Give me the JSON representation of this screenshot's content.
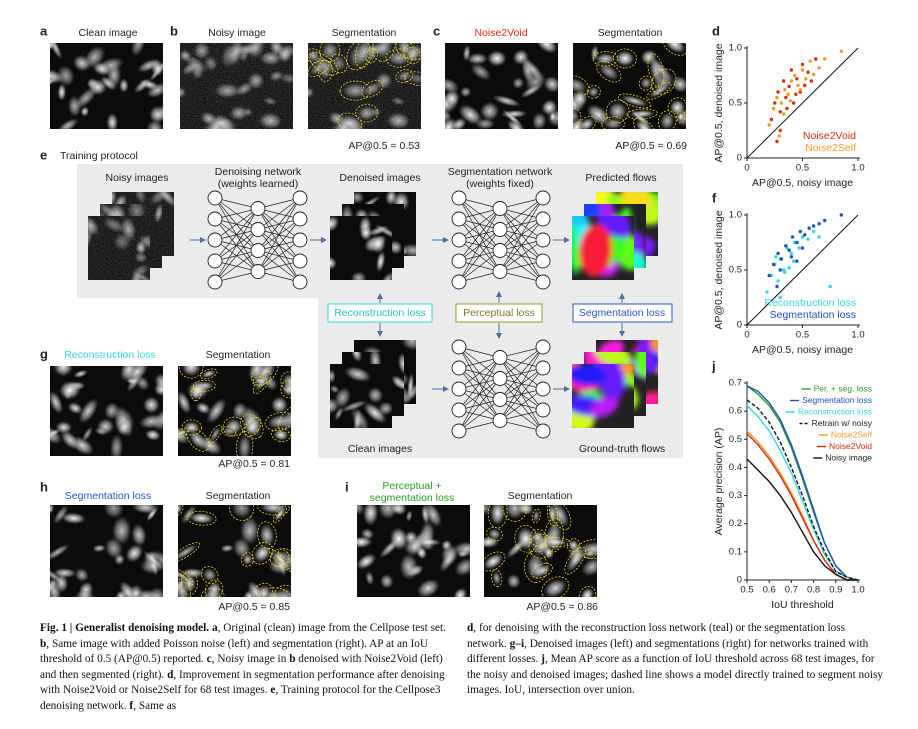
{
  "panels": {
    "a": {
      "label": "a",
      "title": "Clean image"
    },
    "b": {
      "label": "b",
      "titles": [
        "Noisy image",
        "Segmentation"
      ],
      "ap": "AP@0.5 = 0.53"
    },
    "c": {
      "label": "c",
      "titles": [
        "Noise2Void",
        "Segmentation"
      ],
      "ap": "AP@0.5 = 0.69"
    },
    "e": {
      "label": "e",
      "title": "Training protocol"
    },
    "g": {
      "label": "g",
      "titles": [
        "Reconstruction loss",
        "Segmentation"
      ],
      "ap": "AP@0.5 = 0.81"
    },
    "h": {
      "label": "h",
      "titles": [
        "Segmentation loss",
        "Segmentation"
      ],
      "ap": "AP@0.5 = 0.85"
    },
    "i": {
      "label": "i",
      "loss_lines": [
        "Perceptual +",
        "segmentation loss"
      ],
      "titles": [
        "Segmentation"
      ],
      "ap": "AP@0.5 = 0.86"
    }
  },
  "diagram": {
    "noisy_images": "Noisy images",
    "denoising_network": [
      "Denoising network",
      "(weights learned)"
    ],
    "denoised_images": "Denoised images",
    "segmentation_network": [
      "Segmentation network",
      "(weights fixed)"
    ],
    "predicted_flows": "Predicted flows",
    "reconstruction_loss": "Reconstruction loss",
    "perceptual_loss": "Perceptual loss",
    "segmentation_loss": "Segmentation loss",
    "clean_images": "Clean images",
    "ground_truth_flows": "Ground-truth flows"
  },
  "chart_data": [
    {
      "type": "scatter",
      "panel": "d",
      "xlabel": "AP@0.5, noisy image",
      "ylabel": "AP@0.5, denoised image",
      "xlim": [
        0,
        1
      ],
      "ylim": [
        0,
        1
      ],
      "xticks": [
        0,
        0.5,
        {
          "value": 1,
          "label": "1.0"
        }
      ],
      "yticks": [
        0,
        0.5,
        {
          "value": 1,
          "label": "1.0"
        }
      ],
      "legend_position": "lower right",
      "series": [
        {
          "name": "Noise2Void",
          "color": "#d62a0e",
          "x": [
            0.22,
            0.25,
            0.28,
            0.3,
            0.33,
            0.35,
            0.38,
            0.4,
            0.42,
            0.45,
            0.48,
            0.5,
            0.52,
            0.55,
            0.58,
            0.62,
            0.3,
            0.36,
            0.44,
            0.27
          ],
          "values": [
            0.35,
            0.5,
            0.6,
            0.42,
            0.7,
            0.55,
            0.65,
            0.8,
            0.5,
            0.72,
            0.6,
            0.85,
            0.66,
            0.78,
            0.7,
            0.9,
            0.25,
            0.45,
            0.58,
            0.15
          ]
        },
        {
          "name": "Noise2Self",
          "color": "#f39b2a",
          "x": [
            0.2,
            0.24,
            0.27,
            0.31,
            0.34,
            0.37,
            0.4,
            0.43,
            0.46,
            0.5,
            0.53,
            0.57,
            0.6,
            0.65,
            0.7,
            0.85,
            0.29,
            0.39,
            0.48,
            0.33
          ],
          "values": [
            0.3,
            0.45,
            0.55,
            0.5,
            0.62,
            0.58,
            0.7,
            0.75,
            0.66,
            0.8,
            0.72,
            0.88,
            0.76,
            0.82,
            0.9,
            0.97,
            0.2,
            0.52,
            0.62,
            0.4
          ]
        }
      ]
    },
    {
      "type": "scatter",
      "panel": "f",
      "xlabel": "AP@0.5, noisy image",
      "ylabel": "AP@0.5, denoised image",
      "xlim": [
        0,
        1
      ],
      "ylim": [
        0,
        1
      ],
      "xticks": [
        0,
        0.5,
        {
          "value": 1,
          "label": "1.0"
        }
      ],
      "yticks": [
        0,
        0.5,
        {
          "value": 1,
          "label": "1.0"
        }
      ],
      "legend_position": "lower right",
      "series": [
        {
          "name": "Reconstruction loss",
          "color": "#36d6e0",
          "x": [
            0.18,
            0.22,
            0.25,
            0.28,
            0.3,
            0.33,
            0.36,
            0.4,
            0.43,
            0.47,
            0.5,
            0.55,
            0.6,
            0.65,
            0.75,
            0.26,
            0.34,
            0.42,
            0.3,
            0.38
          ],
          "values": [
            0.3,
            0.45,
            0.55,
            0.4,
            0.6,
            0.5,
            0.7,
            0.65,
            0.75,
            0.7,
            0.8,
            0.78,
            0.85,
            0.8,
            0.35,
            0.62,
            0.48,
            0.58,
            0.25,
            0.52
          ]
        },
        {
          "name": "Segmentation loss",
          "color": "#1f4fc4",
          "x": [
            0.2,
            0.24,
            0.28,
            0.31,
            0.35,
            0.38,
            0.41,
            0.45,
            0.48,
            0.52,
            0.56,
            0.6,
            0.65,
            0.7,
            0.85,
            0.3,
            0.4,
            0.5,
            0.27,
            0.45
          ],
          "values": [
            0.45,
            0.55,
            0.65,
            0.6,
            0.72,
            0.68,
            0.8,
            0.75,
            0.85,
            0.82,
            0.88,
            0.9,
            0.92,
            0.95,
            1,
            0.5,
            0.62,
            0.7,
            0.35,
            0.58
          ]
        }
      ]
    },
    {
      "type": "line",
      "panel": "j",
      "xlabel": "IoU threshold",
      "ylabel": "Average precision (AP)",
      "xlim": [
        0.5,
        1
      ],
      "ylim": [
        0,
        0.7
      ],
      "xticks": [
        0.5,
        0.6,
        0.7,
        0.8,
        0.9,
        {
          "value": 1,
          "label": "1.0"
        }
      ],
      "yticks": [
        0,
        0.1,
        0.2,
        0.3,
        0.4,
        0.5,
        0.6,
        0.7
      ],
      "legend_position": "upper right",
      "x": [
        0.5,
        0.55,
        0.6,
        0.65,
        0.7,
        0.75,
        0.8,
        0.85,
        0.9,
        0.95,
        1
      ],
      "series": [
        {
          "name": "Per. + seg. loss",
          "color": "#2a9a2a",
          "style": "solid",
          "values": [
            0.69,
            0.66,
            0.62,
            0.56,
            0.47,
            0.36,
            0.24,
            0.13,
            0.05,
            0.01,
            0
          ]
        },
        {
          "name": "Segmentation loss",
          "color": "#1f4fc4",
          "style": "solid",
          "values": [
            0.69,
            0.67,
            0.63,
            0.57,
            0.48,
            0.37,
            0.25,
            0.13,
            0.05,
            0.01,
            0
          ]
        },
        {
          "name": "Reconstruction loss",
          "color": "#36d6e0",
          "style": "solid",
          "values": [
            0.62,
            0.58,
            0.53,
            0.46,
            0.38,
            0.28,
            0.18,
            0.09,
            0.03,
            0.01,
            0
          ]
        },
        {
          "name": "Retrain w/ noisy",
          "color": "#111111",
          "style": "dashed",
          "values": [
            0.64,
            0.61,
            0.56,
            0.49,
            0.4,
            0.3,
            0.19,
            0.1,
            0.03,
            0.01,
            0
          ]
        },
        {
          "name": "Noise2Self",
          "color": "#f39b2a",
          "style": "solid",
          "values": [
            0.53,
            0.49,
            0.44,
            0.38,
            0.31,
            0.23,
            0.14,
            0.07,
            0.02,
            0,
            0
          ]
        },
        {
          "name": "Noise2Void",
          "color": "#d62a0e",
          "style": "solid",
          "values": [
            0.52,
            0.48,
            0.43,
            0.37,
            0.3,
            0.22,
            0.14,
            0.07,
            0.02,
            0,
            0
          ]
        },
        {
          "name": "Noisy image",
          "color": "#111111",
          "style": "solid",
          "values": [
            0.43,
            0.39,
            0.35,
            0.3,
            0.24,
            0.17,
            0.1,
            0.05,
            0.02,
            0,
            0
          ]
        }
      ]
    }
  ],
  "caption": {
    "left": [
      {
        "text": "Fig. 1 | Generalist denoising model. a",
        "bold": true
      },
      {
        "text": ", Original (clean) image from the Cellpose test set. ",
        "bold": false
      },
      {
        "text": "b",
        "bold": true
      },
      {
        "text": ", Same image with added Poisson noise (left) and segmentation (right). AP at an IoU threshold of 0.5 (AP@0.5) reported. ",
        "bold": false
      },
      {
        "text": "c",
        "bold": true
      },
      {
        "text": ", Noisy image in ",
        "bold": false
      },
      {
        "text": "b",
        "bold": true
      },
      {
        "text": " denoised with Noise2Void (left) and then segmented (right). ",
        "bold": false
      },
      {
        "text": "d",
        "bold": true
      },
      {
        "text": ", Improvement in segmentation performance after denoising with Noise2Void or Noise2Self for 68 test images. ",
        "bold": false
      },
      {
        "text": "e",
        "bold": true
      },
      {
        "text": ", Training protocol for the Cellpose3 denoising network. ",
        "bold": false
      },
      {
        "text": "f",
        "bold": true
      },
      {
        "text": ", Same as",
        "bold": false
      }
    ],
    "right": [
      {
        "text": "d",
        "bold": true
      },
      {
        "text": ", for denoising with the reconstruction loss network (teal) or the segmentation loss network. ",
        "bold": false
      },
      {
        "text": "g–i",
        "bold": true
      },
      {
        "text": ", Denoised images (left) and segmentations (right) for networks trained with different losses. ",
        "bold": false
      },
      {
        "text": "j",
        "bold": true
      },
      {
        "text": ", Mean AP score as a function of IoU threshold across 68 test images, for the noisy and denoised images; dashed line shows a model directly trained to segment noisy images. IoU, intersection over union.",
        "bold": false
      }
    ]
  }
}
